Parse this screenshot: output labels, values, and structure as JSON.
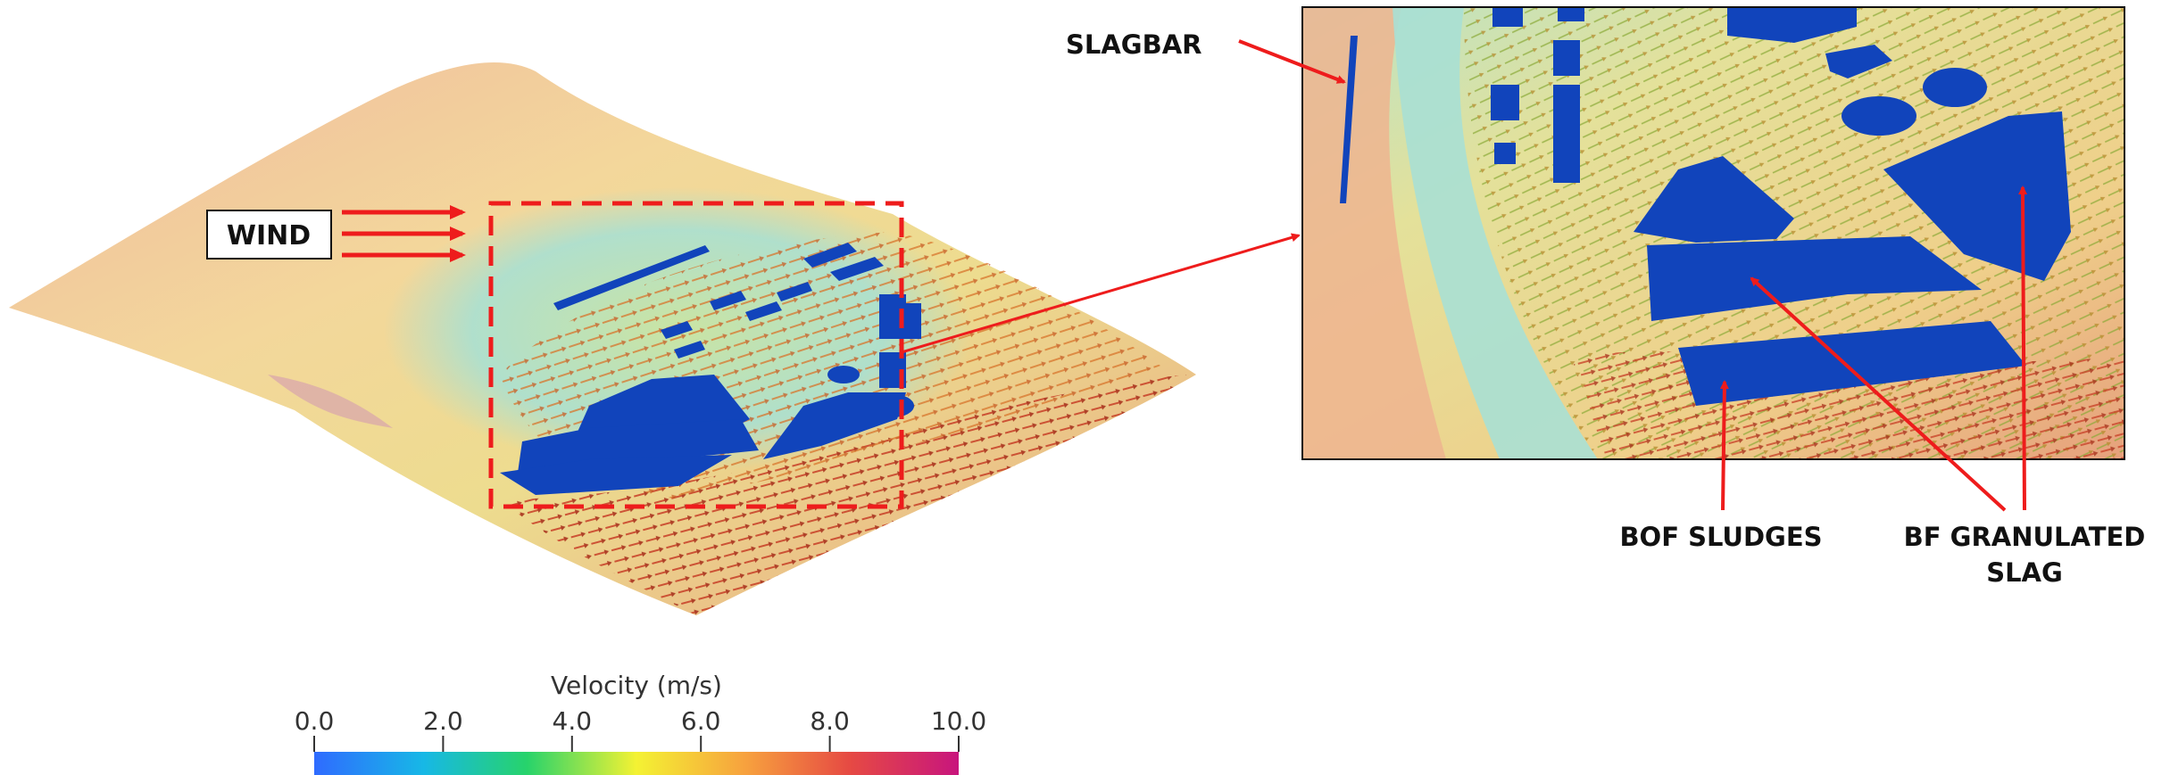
{
  "left_panel": {
    "wind_label": "WIND"
  },
  "right_panel": {
    "slagbar_label": "SLAGBAR",
    "bof_sludges_label": "BOF SLUDGES",
    "bf_slag_label_line1": "BF GRANULATED",
    "bf_slag_label_line2": "SLAG"
  },
  "colorbar": {
    "title": "Velocity (m/s)",
    "ticks": [
      "0.0",
      "2.0",
      "4.0",
      "6.0",
      "8.0",
      "10.0"
    ],
    "min": 0.0,
    "max": 10.0,
    "colors": [
      "#2f6bff",
      "#17b8e6",
      "#27d36b",
      "#f4f233",
      "#f7a13e",
      "#e64a43",
      "#c8157d"
    ]
  },
  "colors": {
    "annotation_red": "#ee1c1c",
    "pile_blue": "#1144bb",
    "terrain_far": "#eeb6a0",
    "terrain_mid": "#f0dc93",
    "wake_cyan": "#9fded8"
  }
}
